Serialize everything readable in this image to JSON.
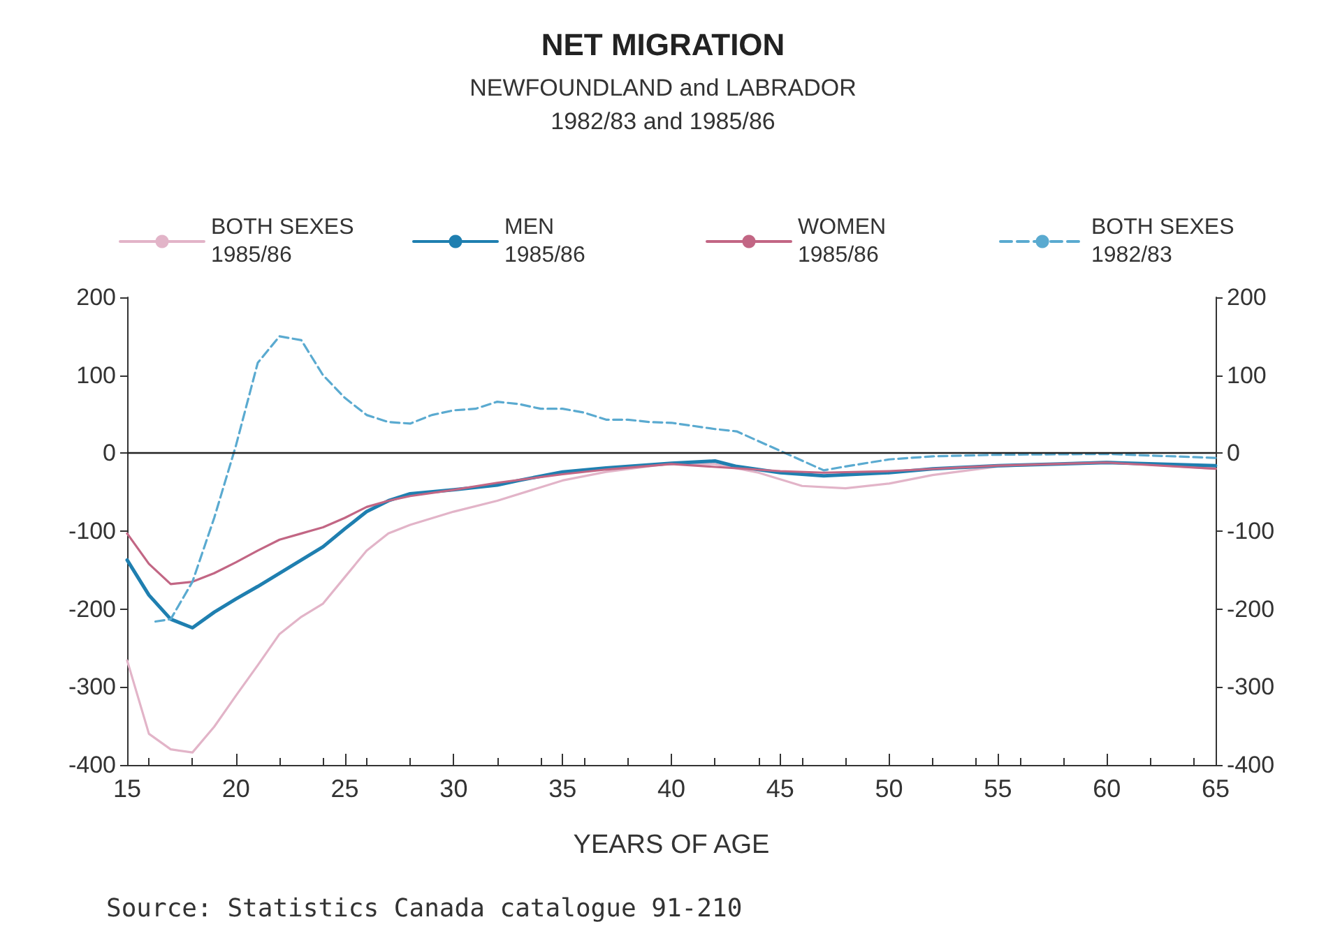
{
  "chart_data": {
    "type": "line",
    "title": "NET MIGRATION",
    "subtitle": "NEWFOUNDLAND and LABRADOR\n1982/83 and 1985/86",
    "xlabel": "YEARS OF AGE",
    "annotations": [
      "Source: Statistics Canada catalogue 91-210"
    ],
    "xlim": [
      15,
      65
    ],
    "xticks": [
      15,
      20,
      25,
      30,
      35,
      40,
      45,
      50,
      55,
      60,
      65
    ],
    "ylim": [
      -400,
      200
    ],
    "yticks": [
      -400,
      -300,
      -200,
      -100,
      0,
      100,
      200
    ],
    "y2lim": [
      -400,
      200
    ],
    "y2ticks": [
      -400,
      -300,
      -200,
      -100,
      0,
      100,
      200
    ],
    "grid": false,
    "legend": "top",
    "marker": "none",
    "ref_lines": [
      {
        "axis": "y",
        "value": 0,
        "color": "#222222"
      }
    ],
    "series": [
      {
        "name": "BOTH SEXES\n1985/86",
        "color": "#e2b4c8",
        "line_style": "solid",
        "x": [
          15,
          16,
          17,
          18,
          19,
          20,
          21,
          22,
          23,
          24,
          25,
          26,
          27,
          28,
          30,
          32,
          35,
          37,
          40,
          42,
          44,
          46,
          48,
          50,
          52,
          55,
          60,
          65
        ],
        "values": [
          -266,
          -360,
          -380,
          -384,
          -351,
          -311,
          -272,
          -232,
          -210,
          -193,
          -159,
          -125,
          -103,
          -92,
          -75,
          -61,
          -35,
          -24,
          -13,
          -14,
          -25,
          -42,
          -45,
          -39,
          -28,
          -17,
          -11,
          -20
        ]
      },
      {
        "name": "MEN\n1985/86",
        "color": "#1f7fb0",
        "line_style": "solid",
        "x": [
          15,
          16,
          17,
          18,
          19,
          20,
          21,
          22,
          23,
          24,
          25,
          26,
          27,
          28,
          30,
          32,
          33,
          35,
          37,
          40,
          42,
          43,
          45,
          47,
          50,
          52,
          55,
          60,
          65
        ],
        "values": [
          -137,
          -182,
          -213,
          -224,
          -204,
          -187,
          -171,
          -154,
          -137,
          -120,
          -97,
          -75,
          -61,
          -52,
          -47,
          -41,
          -35,
          -24,
          -19,
          -13,
          -10,
          -17,
          -25,
          -29,
          -25,
          -20,
          -16,
          -12,
          -16
        ]
      },
      {
        "name": "WOMEN\n1985/86",
        "color": "#c26684",
        "line_style": "solid",
        "x": [
          15,
          16,
          17,
          18,
          19,
          20,
          21,
          22,
          23,
          24,
          25,
          26,
          27,
          28,
          30,
          32,
          35,
          37,
          40,
          45,
          47,
          50,
          55,
          60,
          65
        ],
        "values": [
          -103,
          -142,
          -168,
          -165,
          -154,
          -140,
          -125,
          -111,
          -103,
          -95,
          -83,
          -69,
          -61,
          -55,
          -47,
          -38,
          -27,
          -21,
          -14,
          -23,
          -25,
          -23,
          -16,
          -12,
          -20
        ]
      },
      {
        "name": "BOTH SEXES\n1982/83",
        "color": "#5aaad0",
        "line_style": "dashed",
        "x": [
          16.3,
          17,
          18,
          19,
          20,
          21,
          22,
          23,
          24,
          25,
          26,
          27,
          28,
          29,
          30,
          31,
          32,
          33,
          34,
          35,
          36,
          37,
          38,
          39,
          40,
          42,
          43,
          45,
          47,
          48,
          50,
          52,
          55,
          60,
          65
        ],
        "values": [
          -216,
          -213,
          -165,
          -83,
          10,
          116,
          150,
          145,
          100,
          71,
          49,
          40,
          38,
          49,
          55,
          57,
          66,
          63,
          57,
          57,
          52,
          43,
          43,
          40,
          39,
          31,
          28,
          3,
          -22,
          -17,
          -8,
          -4,
          -2,
          -1,
          -6
        ]
      }
    ]
  }
}
